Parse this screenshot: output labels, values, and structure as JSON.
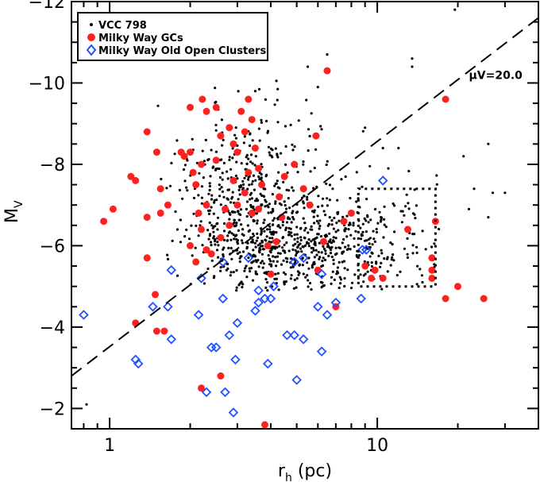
{
  "chart_data": {
    "type": "scatter",
    "title": "",
    "xlabel": "r",
    "xlabel_sub": "h",
    "xlabel_units": " (pc)",
    "ylabel": "M",
    "ylabel_sub": "V",
    "x_scale": "log",
    "xlim": [
      0.72,
      40
    ],
    "ylim": [
      -1.5,
      -12
    ],
    "x_ticks": [
      {
        "value": 1,
        "label": "1"
      },
      {
        "value": 10,
        "label": "10"
      }
    ],
    "y_ticks": [
      {
        "value": -12,
        "label": "−12"
      },
      {
        "value": -10,
        "label": "−10"
      },
      {
        "value": -8,
        "label": "−8"
      },
      {
        "value": -6,
        "label": "−6"
      },
      {
        "value": -4,
        "label": "−4"
      },
      {
        "value": -2,
        "label": "−2"
      }
    ],
    "legend": {
      "position": "top-left",
      "entries": [
        {
          "label": "VCC 798",
          "marker": "dot",
          "color": "#000000"
        },
        {
          "label": "Milky Way GCs",
          "marker": "filled-circle",
          "color": "#ff2020"
        },
        {
          "label": "Milky Way Old Open Clusters",
          "marker": "open-diamond",
          "color": "#2050ff"
        }
      ]
    },
    "reference_line": {
      "label": "μV=20.0",
      "label_position": [
        22,
        -10.1
      ],
      "style": "dashed",
      "points": [
        [
          0.72,
          -2.8
        ],
        [
          40,
          -11.6
        ]
      ]
    },
    "selection_box": {
      "style": "dotted",
      "x_range": [
        8.5,
        16.5
      ],
      "y_range": [
        -5.0,
        -7.4
      ]
    },
    "series": [
      {
        "name": "Milky Way GCs",
        "color": "#ff2020",
        "points": [
          [
            0.95,
            -6.6
          ],
          [
            1.03,
            -6.9
          ],
          [
            1.2,
            -7.7
          ],
          [
            1.25,
            -7.6
          ],
          [
            1.38,
            -8.8
          ],
          [
            1.5,
            -8.3
          ],
          [
            1.55,
            -7.4
          ],
          [
            1.38,
            -6.7
          ],
          [
            1.38,
            -5.7
          ],
          [
            1.55,
            -6.8
          ],
          [
            1.48,
            -4.8
          ],
          [
            1.25,
            -4.1
          ],
          [
            1.5,
            -3.9
          ],
          [
            1.65,
            -7.0
          ],
          [
            1.85,
            -8.3
          ],
          [
            1.9,
            -8.2
          ],
          [
            2.0,
            -8.3
          ],
          [
            2.05,
            -7.8
          ],
          [
            2.1,
            -7.5
          ],
          [
            2.15,
            -6.8
          ],
          [
            2.2,
            -6.4
          ],
          [
            2.3,
            -7.0
          ],
          [
            2.0,
            -9.4
          ],
          [
            2.3,
            -9.3
          ],
          [
            2.22,
            -9.6
          ],
          [
            2.5,
            -9.4
          ],
          [
            2.6,
            -8.7
          ],
          [
            2.8,
            -8.9
          ],
          [
            2.9,
            -8.5
          ],
          [
            3.0,
            -8.3
          ],
          [
            3.2,
            -8.8
          ],
          [
            3.4,
            -9.1
          ],
          [
            3.5,
            -8.4
          ],
          [
            3.3,
            -7.8
          ],
          [
            3.6,
            -7.9
          ],
          [
            3.2,
            -7.3
          ],
          [
            3.0,
            -7.0
          ],
          [
            2.8,
            -6.5
          ],
          [
            2.6,
            -6.2
          ],
          [
            2.4,
            -5.8
          ],
          [
            2.1,
            -5.6
          ],
          [
            3.4,
            -6.8
          ],
          [
            3.6,
            -6.9
          ],
          [
            3.9,
            -6.0
          ],
          [
            4.2,
            -6.1
          ],
          [
            4.5,
            -7.7
          ],
          [
            4.9,
            -8.0
          ],
          [
            5.3,
            -7.4
          ],
          [
            5.6,
            -7.0
          ],
          [
            5.9,
            -8.7
          ],
          [
            6.5,
            -10.3
          ],
          [
            4.4,
            -6.7
          ],
          [
            4.0,
            -5.3
          ],
          [
            6.0,
            -5.4
          ],
          [
            6.3,
            -6.1
          ],
          [
            7.0,
            -4.5
          ],
          [
            7.5,
            -6.6
          ],
          [
            8.0,
            -6.8
          ],
          [
            9.0,
            -5.5
          ],
          [
            9.5,
            -5.2
          ],
          [
            9.8,
            -5.4
          ],
          [
            10.5,
            -5.2
          ],
          [
            13.0,
            -6.4
          ],
          [
            16.0,
            -5.7
          ],
          [
            16.0,
            -5.4
          ],
          [
            16.0,
            -5.2
          ],
          [
            16.5,
            -6.6
          ],
          [
            18.0,
            -4.7
          ],
          [
            18.0,
            -9.6
          ],
          [
            20.0,
            -5.0
          ],
          [
            25.0,
            -4.7
          ],
          [
            3.8,
            -1.6
          ],
          [
            2.2,
            -2.5
          ],
          [
            2.6,
            -2.8
          ],
          [
            1.6,
            -3.9
          ],
          [
            2.0,
            -6.0
          ],
          [
            2.3,
            -5.9
          ],
          [
            2.7,
            -6.9
          ],
          [
            2.2,
            -8.0
          ],
          [
            2.5,
            -8.1
          ],
          [
            2.9,
            -7.6
          ],
          [
            3.1,
            -9.3
          ],
          [
            3.3,
            -9.6
          ],
          [
            4.3,
            -7.2
          ],
          [
            3.7,
            -7.5
          ]
        ]
      },
      {
        "name": "Milky Way Old Open Clusters",
        "color": "#2050ff",
        "points": [
          [
            0.8,
            -4.3
          ],
          [
            1.25,
            -3.2
          ],
          [
            1.28,
            -3.1
          ],
          [
            1.45,
            -4.5
          ],
          [
            1.65,
            -4.5
          ],
          [
            1.7,
            -5.4
          ],
          [
            1.7,
            -3.7
          ],
          [
            2.15,
            -4.3
          ],
          [
            2.2,
            -5.2
          ],
          [
            2.4,
            -3.5
          ],
          [
            2.5,
            -3.5
          ],
          [
            2.65,
            -4.7
          ],
          [
            2.65,
            -5.6
          ],
          [
            2.8,
            -3.8
          ],
          [
            2.95,
            -3.2
          ],
          [
            3.0,
            -4.1
          ],
          [
            3.3,
            -5.7
          ],
          [
            3.5,
            -4.4
          ],
          [
            3.6,
            -4.9
          ],
          [
            3.6,
            -4.6
          ],
          [
            3.8,
            -4.7
          ],
          [
            3.9,
            -3.1
          ],
          [
            4.0,
            -4.7
          ],
          [
            4.1,
            -5.0
          ],
          [
            4.6,
            -3.8
          ],
          [
            4.9,
            -3.8
          ],
          [
            5.0,
            -2.7
          ],
          [
            5.3,
            -3.7
          ],
          [
            5.3,
            -5.7
          ],
          [
            6.0,
            -4.5
          ],
          [
            6.2,
            -3.4
          ],
          [
            6.5,
            -4.3
          ],
          [
            7.0,
            -4.6
          ],
          [
            8.8,
            -5.9
          ],
          [
            9.1,
            -5.9
          ],
          [
            10.5,
            -7.6
          ],
          [
            2.3,
            -2.4
          ],
          [
            2.7,
            -2.4
          ],
          [
            2.9,
            -1.9
          ],
          [
            8.7,
            -4.7
          ],
          [
            4.9,
            -5.6
          ],
          [
            6.2,
            -5.3
          ]
        ]
      },
      {
        "name": "VCC 798",
        "color": "#000000",
        "generated": true,
        "count": 1100,
        "seed": 7
      }
    ]
  }
}
